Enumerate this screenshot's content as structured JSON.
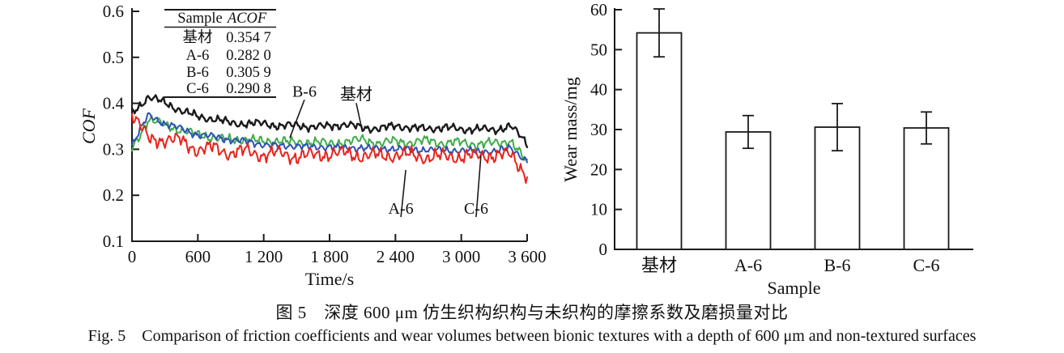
{
  "figure": {
    "caption_zh": "图 5　深度 600 μm 仿生织构织构与未织构的摩擦系数及磨损量对比",
    "caption_en": "Fig. 5　Comparison of friction coefficients and wear volumes between bionic textures with a depth of 600 μm and non-textured surfaces"
  },
  "colors": {
    "axis": "#1a1a1a",
    "substrate": "#1a1a1a",
    "a6": "#e8231c",
    "b6": "#3fad49",
    "c6": "#3051b5"
  },
  "chart_data": [
    {
      "id": "cof_vs_time",
      "type": "line",
      "title": "",
      "xlabel": "Time/s",
      "ylabel": "COF",
      "xlim": [
        0,
        3600
      ],
      "ylim": [
        0.1,
        0.6
      ],
      "x_tick_values": [
        0,
        600,
        1200,
        1800,
        2400,
        3000,
        3600
      ],
      "x_tick_labels": [
        "0",
        "600",
        "1 200",
        "1 800",
        "2 400",
        "3 000",
        "3 600"
      ],
      "y_tick_values": [
        0.1,
        0.2,
        0.3,
        0.4,
        0.5,
        0.6
      ],
      "y_tick_labels": [
        "0.1",
        "0.2",
        "0.3",
        "0.4",
        "0.5",
        "0.6"
      ],
      "grid": false,
      "trend_x_step": 150,
      "series": [
        {
          "id": "substrate",
          "name": "基材",
          "color_key": "substrate",
          "acof": "0.354 7",
          "noise": 0.01,
          "z": 4,
          "trend": [
            0.38,
            0.413,
            0.402,
            0.383,
            0.372,
            0.365,
            0.358,
            0.355,
            0.357,
            0.35,
            0.353,
            0.348,
            0.351,
            0.354,
            0.347,
            0.345,
            0.351,
            0.347,
            0.344,
            0.349,
            0.342,
            0.346,
            0.34,
            0.353,
            0.31
          ]
        },
        {
          "id": "a6",
          "name": "A-6",
          "color_key": "a6",
          "acof": "0.282 0",
          "noise": 0.017,
          "z": 3,
          "trend": [
            0.375,
            0.325,
            0.318,
            0.322,
            0.295,
            0.307,
            0.288,
            0.3,
            0.284,
            0.296,
            0.28,
            0.291,
            0.287,
            0.295,
            0.282,
            0.29,
            0.284,
            0.291,
            0.279,
            0.288,
            0.281,
            0.289,
            0.284,
            0.291,
            0.24
          ]
        },
        {
          "id": "b6",
          "name": "B-6",
          "color_key": "b6",
          "acof": "0.305 9",
          "noise": 0.012,
          "z": 1,
          "trend": [
            0.3,
            0.366,
            0.352,
            0.342,
            0.331,
            0.326,
            0.319,
            0.323,
            0.315,
            0.321,
            0.312,
            0.318,
            0.311,
            0.317,
            0.321,
            0.313,
            0.318,
            0.314,
            0.32,
            0.312,
            0.316,
            0.31,
            0.314,
            0.318,
            0.27
          ]
        },
        {
          "id": "c6",
          "name": "C-6",
          "color_key": "c6",
          "acof": "0.290 8",
          "noise": 0.009,
          "z": 2,
          "trend": [
            0.31,
            0.374,
            0.356,
            0.344,
            0.332,
            0.327,
            0.321,
            0.316,
            0.311,
            0.306,
            0.309,
            0.303,
            0.307,
            0.301,
            0.305,
            0.299,
            0.303,
            0.297,
            0.301,
            0.296,
            0.299,
            0.293,
            0.297,
            0.301,
            0.276
          ]
        }
      ],
      "inset_table": {
        "headers": [
          "Sample",
          "ACOF"
        ],
        "rows": [
          [
            "基材",
            "0.354 7"
          ],
          [
            "A-6",
            "0.282 0"
          ],
          [
            "B-6",
            "0.305 9"
          ],
          [
            "C-6",
            "0.290 8"
          ]
        ]
      },
      "annotations": [
        {
          "text": "B-6",
          "label_t": 1571,
          "label_v": 0.427,
          "tip_t": 1438,
          "tip_v": 0.325
        },
        {
          "text": "基材",
          "label_t": 2043,
          "label_v": 0.42,
          "tip_t": 2087,
          "tip_v": 0.352
        },
        {
          "text": "A-6",
          "label_t": 2450,
          "label_v": 0.172,
          "tip_t": 2494,
          "tip_v": 0.255
        },
        {
          "text": "C-6",
          "label_t": 3135,
          "label_v": 0.172,
          "tip_t": 3179,
          "tip_v": 0.287
        }
      ]
    },
    {
      "id": "wear_mass",
      "type": "bar",
      "title": "",
      "xlabel": "Sample",
      "ylabel": "Wear mass/mg",
      "categories": [
        "基材",
        "A-6",
        "B-6",
        "C-6"
      ],
      "ids": [
        "substrate",
        "a6",
        "b6",
        "c6"
      ],
      "values": [
        54.2,
        29.4,
        30.6,
        30.4
      ],
      "errors": [
        6.0,
        4.1,
        5.9,
        4.0
      ],
      "ylim": [
        0,
        60
      ],
      "y_tick_values": [
        0,
        10,
        20,
        30,
        40,
        50,
        60
      ],
      "y_tick_labels": [
        "0",
        "10",
        "20",
        "30",
        "40",
        "50",
        "60"
      ],
      "grid": false,
      "bar_fill": "#ffffff"
    }
  ]
}
